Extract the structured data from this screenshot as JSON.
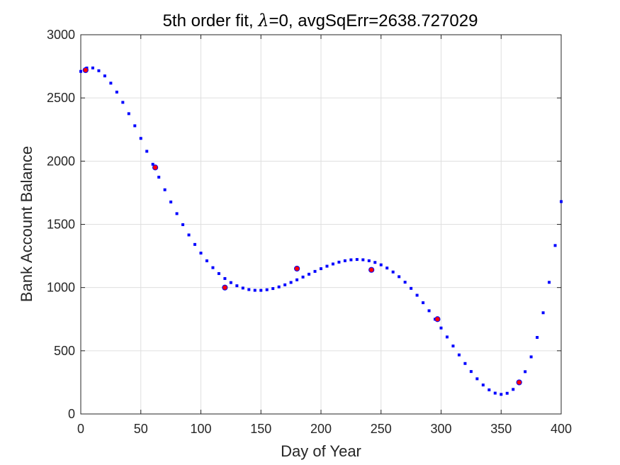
{
  "chart_data": {
    "type": "scatter",
    "title_prefix": "5th order fit, ",
    "title_lambda_symbol": "λ",
    "title_suffix": "=0, avgSqErr=2638.727029",
    "xlabel": "Day of Year",
    "ylabel": "Bank Account Balance",
    "xlim": [
      0,
      400
    ],
    "ylim": [
      0,
      3000
    ],
    "xticks": [
      0,
      50,
      100,
      150,
      200,
      250,
      300,
      350,
      400
    ],
    "yticks": [
      0,
      500,
      1000,
      1500,
      2000,
      2500,
      3000
    ],
    "grid": true,
    "series": [
      {
        "marker": "square",
        "color": "#0000ff",
        "poly_interp_points": {
          "x": [
            0,
            50,
            150,
            230,
            350,
            400
          ],
          "y": [
            2710,
            2180,
            978,
            1222,
            155,
            1680
          ]
        },
        "x_start": 0,
        "x_end": 400,
        "x_step": 5
      },
      {
        "marker": "circle",
        "color": "#ff0000",
        "edge_color": "#0000ff",
        "x": [
          4,
          62,
          120,
          180,
          242,
          297,
          365
        ],
        "y": [
          2720,
          1950,
          1000,
          1150,
          1140,
          750,
          250
        ]
      }
    ],
    "colors": {
      "grid": "#dfdfdf",
      "axis": "#262626",
      "fit_marker": "#0000ff",
      "data_fill": "#ff0000",
      "data_edge": "#0000ff"
    }
  }
}
